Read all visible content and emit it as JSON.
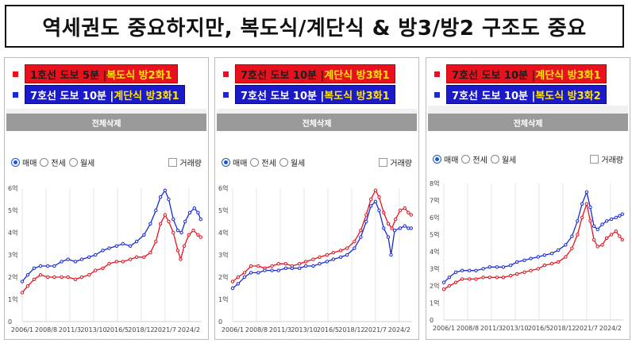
{
  "title": "역세권도 중요하지만, 복도식/계단식 & 방3/방2 구조도 중요",
  "ui": {
    "delete_all": "전체삭제",
    "radios": [
      "매매",
      "전세",
      "월세"
    ],
    "checkbox": "거래량"
  },
  "colors": {
    "red": "#e8121f",
    "blue": "#1a2bd6"
  },
  "chart_data": [
    {
      "type": "line",
      "legend": [
        {
          "color": "red",
          "a": "1호선 도보 5분 | ",
          "b": "복도식 방2화1"
        },
        {
          "color": "blue",
          "a": "7호선 도보 10분 | ",
          "b": "계단식 방3화1"
        }
      ],
      "y_ticks": [
        "0",
        "1억",
        "2억",
        "3억",
        "4억",
        "5억",
        "6억"
      ],
      "ylim": [
        0,
        6
      ],
      "x_ticks": [
        "2006/1",
        "2008/8",
        "2011/3",
        "2013/10",
        "2016/5",
        "2018/12",
        "2021/7",
        "2024/2"
      ],
      "xlim": [
        2006.0,
        2025.6
      ],
      "series": [
        {
          "color": "red",
          "points": [
            [
              2006.0,
              1.3
            ],
            [
              2006.6,
              1.6
            ],
            [
              2007.3,
              1.9
            ],
            [
              2008.0,
              2.1
            ],
            [
              2008.8,
              2.0
            ],
            [
              2009.5,
              2.0
            ],
            [
              2010.3,
              2.0
            ],
            [
              2011.0,
              2.0
            ],
            [
              2011.8,
              1.9
            ],
            [
              2012.5,
              2.0
            ],
            [
              2013.3,
              2.1
            ],
            [
              2014.0,
              2.3
            ],
            [
              2014.8,
              2.4
            ],
            [
              2015.5,
              2.6
            ],
            [
              2016.3,
              2.7
            ],
            [
              2017.0,
              2.7
            ],
            [
              2017.8,
              2.8
            ],
            [
              2018.5,
              2.9
            ],
            [
              2019.3,
              2.9
            ],
            [
              2020.0,
              3.1
            ],
            [
              2020.6,
              3.6
            ],
            [
              2021.1,
              4.4
            ],
            [
              2021.6,
              4.8
            ],
            [
              2022.0,
              4.5
            ],
            [
              2022.5,
              4.0
            ],
            [
              2023.0,
              3.2
            ],
            [
              2023.3,
              2.8
            ],
            [
              2023.7,
              3.4
            ],
            [
              2024.2,
              3.9
            ],
            [
              2024.7,
              4.1
            ],
            [
              2025.2,
              3.9
            ],
            [
              2025.5,
              3.8
            ]
          ]
        },
        {
          "color": "blue",
          "points": [
            [
              2006.0,
              1.8
            ],
            [
              2006.6,
              2.1
            ],
            [
              2007.3,
              2.4
            ],
            [
              2008.0,
              2.5
            ],
            [
              2008.8,
              2.5
            ],
            [
              2009.5,
              2.5
            ],
            [
              2010.3,
              2.7
            ],
            [
              2011.0,
              2.8
            ],
            [
              2011.8,
              2.7
            ],
            [
              2012.5,
              2.8
            ],
            [
              2013.3,
              2.9
            ],
            [
              2014.0,
              3.0
            ],
            [
              2014.8,
              3.2
            ],
            [
              2015.5,
              3.3
            ],
            [
              2016.3,
              3.4
            ],
            [
              2017.0,
              3.5
            ],
            [
              2017.8,
              3.4
            ],
            [
              2018.5,
              3.6
            ],
            [
              2019.3,
              3.9
            ],
            [
              2020.0,
              4.4
            ],
            [
              2020.6,
              5.0
            ],
            [
              2021.1,
              5.6
            ],
            [
              2021.6,
              5.9
            ],
            [
              2022.0,
              5.5
            ],
            [
              2022.5,
              4.6
            ],
            [
              2023.0,
              4.1
            ],
            [
              2023.4,
              4.0
            ],
            [
              2023.8,
              4.5
            ],
            [
              2024.3,
              4.9
            ],
            [
              2024.8,
              5.1
            ],
            [
              2025.2,
              4.9
            ],
            [
              2025.5,
              4.6
            ]
          ]
        }
      ]
    },
    {
      "type": "line",
      "legend": [
        {
          "color": "red",
          "a": "7호선 도보 10분 | ",
          "b": "계단식 방3화1"
        },
        {
          "color": "blue",
          "a": "7호선 도보 10분 | ",
          "b": "복도식 방3화1"
        }
      ],
      "y_ticks": [
        "0",
        "1억",
        "2억",
        "3억",
        "4억",
        "5억",
        "6억"
      ],
      "ylim": [
        0,
        6
      ],
      "x_ticks": [
        "2006/1",
        "2008/8",
        "2011/3",
        "2013/10",
        "2016/5",
        "2018/12",
        "2021/7",
        "2024/2"
      ],
      "xlim": [
        2006.0,
        2025.6
      ],
      "series": [
        {
          "color": "red",
          "points": [
            [
              2006.0,
              1.8
            ],
            [
              2006.6,
              2.0
            ],
            [
              2007.3,
              2.2
            ],
            [
              2008.0,
              2.5
            ],
            [
              2008.8,
              2.5
            ],
            [
              2009.5,
              2.4
            ],
            [
              2010.3,
              2.5
            ],
            [
              2011.0,
              2.6
            ],
            [
              2011.8,
              2.6
            ],
            [
              2012.5,
              2.5
            ],
            [
              2013.3,
              2.6
            ],
            [
              2014.0,
              2.7
            ],
            [
              2014.8,
              2.8
            ],
            [
              2015.5,
              2.9
            ],
            [
              2016.3,
              3.0
            ],
            [
              2017.0,
              3.1
            ],
            [
              2017.8,
              3.2
            ],
            [
              2018.5,
              3.3
            ],
            [
              2019.3,
              3.6
            ],
            [
              2020.0,
              4.1
            ],
            [
              2020.6,
              4.8
            ],
            [
              2021.1,
              5.5
            ],
            [
              2021.6,
              5.9
            ],
            [
              2022.0,
              5.6
            ],
            [
              2022.5,
              4.9
            ],
            [
              2023.0,
              4.4
            ],
            [
              2023.4,
              4.2
            ],
            [
              2023.8,
              4.6
            ],
            [
              2024.3,
              5.0
            ],
            [
              2024.8,
              5.1
            ],
            [
              2025.2,
              4.9
            ],
            [
              2025.5,
              4.8
            ]
          ]
        },
        {
          "color": "blue",
          "points": [
            [
              2006.0,
              1.5
            ],
            [
              2006.6,
              1.7
            ],
            [
              2007.3,
              2.0
            ],
            [
              2008.0,
              2.2
            ],
            [
              2008.8,
              2.2
            ],
            [
              2009.5,
              2.3
            ],
            [
              2010.3,
              2.3
            ],
            [
              2011.0,
              2.3
            ],
            [
              2011.8,
              2.4
            ],
            [
              2012.5,
              2.4
            ],
            [
              2013.3,
              2.4
            ],
            [
              2014.0,
              2.5
            ],
            [
              2014.8,
              2.5
            ],
            [
              2015.5,
              2.6
            ],
            [
              2016.3,
              2.7
            ],
            [
              2017.0,
              2.8
            ],
            [
              2017.8,
              2.9
            ],
            [
              2018.5,
              3.0
            ],
            [
              2019.3,
              3.3
            ],
            [
              2020.0,
              3.8
            ],
            [
              2020.6,
              4.5
            ],
            [
              2021.1,
              5.2
            ],
            [
              2021.6,
              5.4
            ],
            [
              2022.0,
              5.0
            ],
            [
              2022.5,
              4.2
            ],
            [
              2023.0,
              3.8
            ],
            [
              2023.3,
              3.0
            ],
            [
              2023.7,
              4.1
            ],
            [
              2024.3,
              4.2
            ],
            [
              2024.8,
              4.3
            ],
            [
              2025.2,
              4.2
            ],
            [
              2025.5,
              4.2
            ]
          ]
        }
      ]
    },
    {
      "type": "line",
      "legend": [
        {
          "color": "red",
          "a": "7호선 도보 10분 | ",
          "b": "계단식 방3화1"
        },
        {
          "color": "blue",
          "a": "7호선 도보 10분 | ",
          "b": "복도식 방3화2"
        }
      ],
      "y_ticks": [
        "0",
        "1억",
        "2억",
        "3억",
        "4억",
        "5억",
        "6억",
        "7억",
        "8억"
      ],
      "ylim": [
        0,
        8
      ],
      "x_ticks": [
        "2006/1",
        "2008/8",
        "2011/3",
        "2013/10",
        "2016/5",
        "2018/12",
        "2021/7",
        "2024/2"
      ],
      "xlim": [
        2006.0,
        2025.6
      ],
      "series": [
        {
          "color": "red",
          "points": [
            [
              2006.0,
              1.8
            ],
            [
              2006.6,
              2.0
            ],
            [
              2007.3,
              2.2
            ],
            [
              2008.0,
              2.4
            ],
            [
              2008.8,
              2.4
            ],
            [
              2009.5,
              2.4
            ],
            [
              2010.3,
              2.5
            ],
            [
              2011.0,
              2.5
            ],
            [
              2011.8,
              2.5
            ],
            [
              2012.5,
              2.5
            ],
            [
              2013.3,
              2.6
            ],
            [
              2014.0,
              2.7
            ],
            [
              2014.8,
              2.8
            ],
            [
              2015.5,
              2.9
            ],
            [
              2016.3,
              3.0
            ],
            [
              2017.0,
              3.2
            ],
            [
              2017.8,
              3.3
            ],
            [
              2018.5,
              3.4
            ],
            [
              2019.3,
              3.7
            ],
            [
              2020.0,
              4.2
            ],
            [
              2020.6,
              5.0
            ],
            [
              2021.1,
              6.0
            ],
            [
              2021.6,
              6.8
            ],
            [
              2022.0,
              5.8
            ],
            [
              2022.4,
              4.7
            ],
            [
              2022.8,
              4.3
            ],
            [
              2023.3,
              4.4
            ],
            [
              2023.8,
              4.8
            ],
            [
              2024.3,
              5.0
            ],
            [
              2024.8,
              5.2
            ],
            [
              2025.2,
              4.9
            ],
            [
              2025.5,
              4.7
            ]
          ]
        },
        {
          "color": "blue",
          "points": [
            [
              2006.0,
              2.2
            ],
            [
              2006.6,
              2.5
            ],
            [
              2007.3,
              2.8
            ],
            [
              2008.0,
              2.9
            ],
            [
              2008.8,
              2.9
            ],
            [
              2009.5,
              2.9
            ],
            [
              2010.3,
              3.0
            ],
            [
              2011.0,
              3.1
            ],
            [
              2011.8,
              3.1
            ],
            [
              2012.5,
              3.1
            ],
            [
              2013.3,
              3.2
            ],
            [
              2014.0,
              3.4
            ],
            [
              2014.8,
              3.5
            ],
            [
              2015.5,
              3.6
            ],
            [
              2016.3,
              3.7
            ],
            [
              2017.0,
              3.8
            ],
            [
              2017.8,
              3.9
            ],
            [
              2018.5,
              4.1
            ],
            [
              2019.3,
              4.4
            ],
            [
              2020.0,
              4.9
            ],
            [
              2020.6,
              5.8
            ],
            [
              2021.1,
              6.8
            ],
            [
              2021.6,
              7.5
            ],
            [
              2022.0,
              6.6
            ],
            [
              2022.4,
              5.5
            ],
            [
              2022.8,
              5.3
            ],
            [
              2023.3,
              5.6
            ],
            [
              2023.8,
              5.8
            ],
            [
              2024.3,
              5.9
            ],
            [
              2024.8,
              6.0
            ],
            [
              2025.2,
              6.1
            ],
            [
              2025.5,
              6.2
            ]
          ]
        }
      ]
    }
  ]
}
